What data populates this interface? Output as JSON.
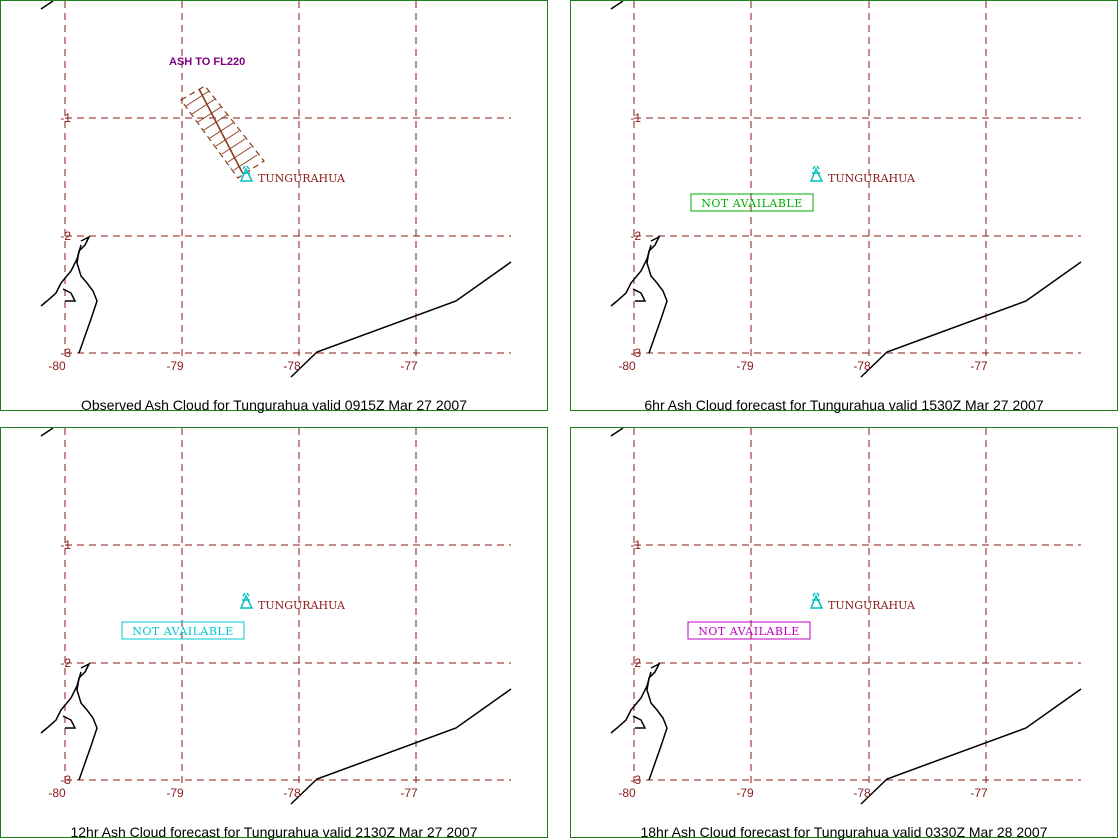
{
  "volcano_name": "TUNGURAHUA",
  "panels": [
    {
      "caption": "Observed Ash Cloud for Tungurahua valid 0915Z Mar 27 2007",
      "volcano_color": "#00bfbf",
      "ash_cloud": {
        "label": "ASH TO FL220",
        "label_color": "#800080",
        "hatch_color": "#8b3a1a"
      }
    },
    {
      "caption": "6hr Ash Cloud forecast for Tungurahua valid 1530Z Mar 27 2007",
      "volcano_color": "#00bfbf",
      "not_available": {
        "text": "NOT AVAILABLE",
        "color": "#00b000"
      }
    },
    {
      "caption": "12hr Ash Cloud forecast for Tungurahua valid 2130Z Mar 27 2007",
      "volcano_color": "#00bfbf",
      "not_available": {
        "text": "NOT AVAILABLE",
        "color": "#00c8d0"
      }
    },
    {
      "caption": "18hr Ash Cloud forecast for Tungurahua valid 0330Z Mar 28 2007",
      "volcano_color": "#00bfbf",
      "not_available": {
        "text": "NOT AVAILABLE",
        "color": "#c000c0"
      }
    }
  ],
  "grid": {
    "latitude_labels": [
      "-1",
      "-2",
      "-3"
    ],
    "longitude_labels": [
      "-80",
      "-79",
      "-78",
      "-77"
    ],
    "line_color": "#8b1a1a"
  }
}
